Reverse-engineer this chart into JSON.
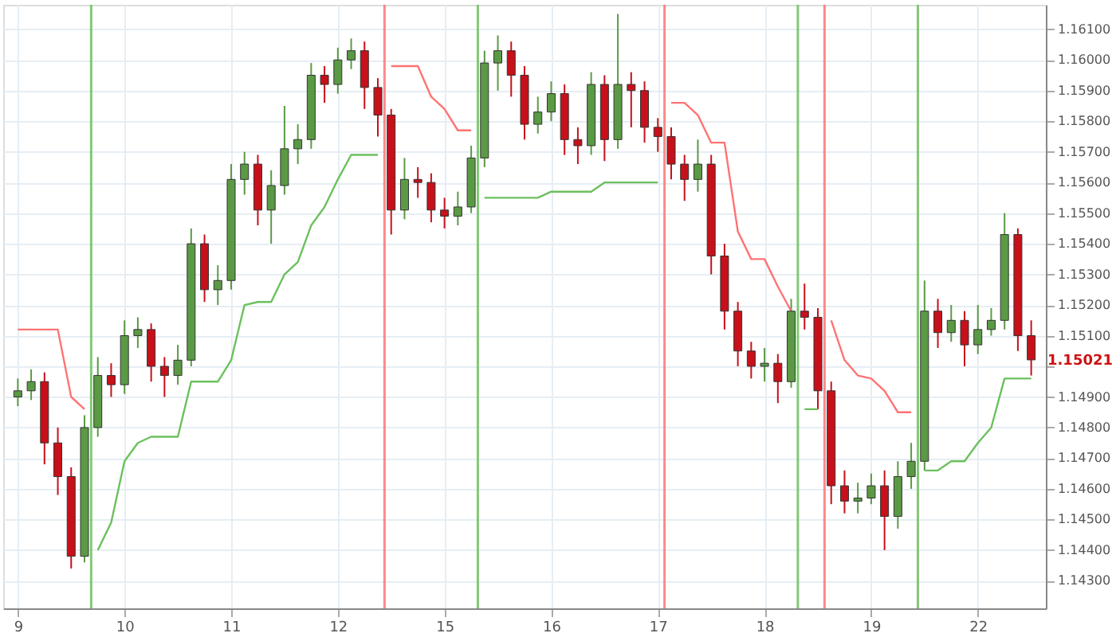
{
  "chart_data": {
    "type": "candlestick",
    "categories": [
      "9",
      null,
      null,
      null,
      null,
      null,
      null,
      null,
      "10",
      null,
      null,
      null,
      null,
      null,
      null,
      null,
      "11",
      null,
      null,
      null,
      null,
      null,
      null,
      null,
      "12",
      null,
      null,
      null,
      null,
      null,
      null,
      null,
      "15",
      null,
      null,
      null,
      null,
      null,
      null,
      null,
      "16",
      null,
      null,
      null,
      null,
      null,
      null,
      null,
      "17",
      null,
      null,
      null,
      null,
      null,
      null,
      null,
      "18",
      null,
      null,
      null,
      null,
      null,
      null,
      null,
      "19",
      null,
      null,
      null,
      null,
      null,
      null,
      null,
      "22",
      null,
      null,
      null,
      null
    ],
    "ohlc": [
      [
        1.149,
        1.1496,
        1.1487,
        1.1492
      ],
      [
        1.1492,
        1.1499,
        1.1489,
        1.1495
      ],
      [
        1.1495,
        1.1498,
        1.1468,
        1.1475
      ],
      [
        1.1475,
        1.148,
        1.1458,
        1.1464
      ],
      [
        1.1464,
        1.1467,
        1.1434,
        1.1438
      ],
      [
        1.1438,
        1.1484,
        1.1436,
        1.148
      ],
      [
        1.148,
        1.1503,
        1.1477,
        1.1497
      ],
      [
        1.1497,
        1.1501,
        1.149,
        1.1494
      ],
      [
        1.1494,
        1.1515,
        1.1491,
        1.151
      ],
      [
        1.151,
        1.1516,
        1.1506,
        1.1512
      ],
      [
        1.1512,
        1.1514,
        1.1495,
        1.15
      ],
      [
        1.15,
        1.1503,
        1.149,
        1.1497
      ],
      [
        1.1497,
        1.1507,
        1.1494,
        1.1502
      ],
      [
        1.1502,
        1.1545,
        1.15,
        1.154
      ],
      [
        1.154,
        1.1543,
        1.1521,
        1.1525
      ],
      [
        1.1525,
        1.1533,
        1.152,
        1.1528
      ],
      [
        1.1528,
        1.1566,
        1.1525,
        1.1561
      ],
      [
        1.1561,
        1.157,
        1.1556,
        1.1566
      ],
      [
        1.1566,
        1.1569,
        1.1546,
        1.1551
      ],
      [
        1.1551,
        1.1564,
        1.154,
        1.1559
      ],
      [
        1.1559,
        1.1585,
        1.1556,
        1.1571
      ],
      [
        1.1571,
        1.1579,
        1.1566,
        1.1574
      ],
      [
        1.1574,
        1.1599,
        1.1571,
        1.1595
      ],
      [
        1.1595,
        1.1598,
        1.1586,
        1.1592
      ],
      [
        1.1592,
        1.1604,
        1.1589,
        1.16
      ],
      [
        1.16,
        1.1607,
        1.1597,
        1.1603
      ],
      [
        1.1603,
        1.1606,
        1.1584,
        1.1591
      ],
      [
        1.1591,
        1.1594,
        1.1575,
        1.1582
      ],
      [
        1.1582,
        1.1584,
        1.1543,
        1.1551
      ],
      [
        1.1551,
        1.1568,
        1.1548,
        1.1561
      ],
      [
        1.1561,
        1.1565,
        1.1555,
        1.156
      ],
      [
        1.156,
        1.1563,
        1.1547,
        1.1551
      ],
      [
        1.1551,
        1.1555,
        1.1545,
        1.1549
      ],
      [
        1.1549,
        1.1557,
        1.1546,
        1.1552
      ],
      [
        1.1552,
        1.1572,
        1.155,
        1.1568
      ],
      [
        1.1568,
        1.1603,
        1.1565,
        1.1599
      ],
      [
        1.1599,
        1.1608,
        1.159,
        1.1603
      ],
      [
        1.1603,
        1.1606,
        1.1588,
        1.1595
      ],
      [
        1.1595,
        1.1598,
        1.1574,
        1.1579
      ],
      [
        1.1579,
        1.1588,
        1.1576,
        1.1583
      ],
      [
        1.1583,
        1.1593,
        1.158,
        1.1589
      ],
      [
        1.1589,
        1.1592,
        1.1569,
        1.1574
      ],
      [
        1.1574,
        1.1578,
        1.1566,
        1.1572
      ],
      [
        1.1572,
        1.1596,
        1.1569,
        1.1592
      ],
      [
        1.1592,
        1.1595,
        1.1567,
        1.1574
      ],
      [
        1.1574,
        1.1615,
        1.1571,
        1.1592
      ],
      [
        1.1592,
        1.1596,
        1.1578,
        1.159
      ],
      [
        1.159,
        1.1593,
        1.1573,
        1.1578
      ],
      [
        1.1578,
        1.1581,
        1.157,
        1.1575
      ],
      [
        1.1575,
        1.1578,
        1.1561,
        1.1566
      ],
      [
        1.1566,
        1.1569,
        1.1554,
        1.1561
      ],
      [
        1.1561,
        1.1574,
        1.1557,
        1.1566
      ],
      [
        1.1566,
        1.1569,
        1.153,
        1.1536
      ],
      [
        1.1536,
        1.154,
        1.1512,
        1.1518
      ],
      [
        1.1518,
        1.1521,
        1.15,
        1.1505
      ],
      [
        1.1505,
        1.1508,
        1.1496,
        1.15
      ],
      [
        1.15,
        1.1506,
        1.1495,
        1.1501
      ],
      [
        1.1501,
        1.1504,
        1.1488,
        1.1495
      ],
      [
        1.1495,
        1.1522,
        1.1493,
        1.1518
      ],
      [
        1.1518,
        1.1527,
        1.1512,
        1.1516
      ],
      [
        1.1516,
        1.1519,
        1.1486,
        1.1492
      ],
      [
        1.1492,
        1.1495,
        1.1455,
        1.1461
      ],
      [
        1.1461,
        1.1466,
        1.1452,
        1.1456
      ],
      [
        1.1456,
        1.1462,
        1.1452,
        1.1457
      ],
      [
        1.1457,
        1.1465,
        1.1455,
        1.1461
      ],
      [
        1.1461,
        1.1466,
        1.144,
        1.1451
      ],
      [
        1.1451,
        1.1469,
        1.1447,
        1.1464
      ],
      [
        1.1464,
        1.1475,
        1.146,
        1.1469
      ],
      [
        1.1469,
        1.1528,
        1.1466,
        1.1518
      ],
      [
        1.1518,
        1.1522,
        1.1506,
        1.1511
      ],
      [
        1.1511,
        1.152,
        1.1508,
        1.1515
      ],
      [
        1.1515,
        1.1518,
        1.15,
        1.1507
      ],
      [
        1.1507,
        1.152,
        1.1504,
        1.1512
      ],
      [
        1.1512,
        1.1519,
        1.151,
        1.1515
      ],
      [
        1.1515,
        1.155,
        1.1512,
        1.1543
      ],
      [
        1.1543,
        1.1545,
        1.1505,
        1.151
      ],
      [
        1.151,
        1.1515,
        1.1497,
        1.15021
      ]
    ],
    "colors": [
      "#5b9a45",
      "#5b9a45",
      "#c8101a",
      "#c8101a",
      "#c8101a",
      "#5b9a45",
      "#5b9a45",
      "#c8101a",
      "#5b9a45",
      "#5b9a45",
      "#c8101a",
      "#c8101a",
      "#5b9a45",
      "#5b9a45",
      "#c8101a",
      "#5b9a45",
      "#5b9a45",
      "#5b9a45",
      "#c8101a",
      "#5b9a45",
      "#5b9a45",
      "#5b9a45",
      "#5b9a45",
      "#c8101a",
      "#5b9a45",
      "#5b9a45",
      "#c8101a",
      "#c8101a",
      "#c8101a",
      "#5b9a45",
      "#c8101a",
      "#c8101a",
      "#c8101a",
      "#5b9a45",
      "#5b9a45",
      "#5b9a45",
      "#5b9a45",
      "#c8101a",
      "#c8101a",
      "#5b9a45",
      "#5b9a45",
      "#c8101a",
      "#c8101a",
      "#5b9a45",
      "#c8101a",
      "#5b9a45",
      "#c8101a",
      "#c8101a",
      "#c8101a",
      "#c8101a",
      "#c8101a",
      "#5b9a45",
      "#c8101a",
      "#c8101a",
      "#c8101a",
      "#c8101a",
      "#5b9a45",
      "#c8101a",
      "#5b9a45",
      "#c8101a",
      "#c8101a",
      "#c8101a",
      "#c8101a",
      "#5b9a45",
      "#5b9a45",
      "#c8101a",
      "#5b9a45",
      "#5b9a45",
      "#5b9a45",
      "#c8101a",
      "#5b9a45",
      "#c8101a",
      "#5b9a45",
      "#5b9a45",
      "#5b9a45",
      "#c8101a",
      "#c8101a"
    ],
    "series": [
      {
        "type": "line",
        "color": "#ff7373",
        "values": [
          1.1512,
          1.1512,
          1.1512,
          1.1512,
          1.149,
          1.1486,
          null,
          null,
          null,
          null,
          null,
          null,
          null,
          null,
          null,
          null,
          null,
          null,
          null,
          null,
          null,
          null,
          null,
          null,
          null,
          null,
          null,
          null,
          1.1598,
          1.1598,
          1.1598,
          1.1588,
          1.1584,
          1.1577,
          1.1577,
          null,
          null,
          null,
          null,
          null,
          null,
          null,
          null,
          null,
          null,
          null,
          null,
          null,
          null,
          1.1586,
          1.1586,
          1.1582,
          1.1573,
          1.1573,
          1.1544,
          1.1535,
          1.1535,
          1.1526,
          1.1518,
          null,
          null,
          1.1515,
          1.1502,
          1.1497,
          1.1496,
          1.1492,
          1.1485,
          1.1485,
          null,
          null,
          null,
          null,
          null,
          null,
          null,
          null,
          null
        ]
      },
      {
        "type": "line",
        "color": "#6cc05e",
        "values": [
          null,
          null,
          null,
          null,
          null,
          null,
          1.144,
          1.1449,
          1.1469,
          1.1475,
          1.1477,
          1.1477,
          1.1477,
          1.1495,
          1.1495,
          1.1495,
          1.1502,
          1.152,
          1.1521,
          1.1521,
          1.153,
          1.1534,
          1.1546,
          1.1552,
          1.1561,
          1.1569,
          1.1569,
          1.1569,
          null,
          null,
          null,
          null,
          null,
          null,
          null,
          1.1555,
          1.1555,
          1.1555,
          1.1555,
          1.1555,
          1.1557,
          1.1557,
          1.1557,
          1.1557,
          1.156,
          1.156,
          1.156,
          1.156,
          1.156,
          null,
          null,
          null,
          null,
          null,
          null,
          null,
          null,
          null,
          null,
          1.1486,
          1.1486,
          null,
          null,
          null,
          null,
          null,
          null,
          null,
          1.1466,
          1.1466,
          1.1469,
          1.1469,
          1.1475,
          1.148,
          1.1496,
          1.1496,
          1.1496
        ]
      }
    ],
    "annotations": [
      "1.15021"
    ],
    "ylim": [
      1.1421,
      1.1618
    ],
    "yticks": [
      {
        "value": 1.143,
        "label": "1.14300"
      },
      {
        "value": 1.144,
        "label": "1.14400"
      },
      {
        "value": 1.145,
        "label": "1.14500"
      },
      {
        "value": 1.146,
        "label": "1.14600"
      },
      {
        "value": 1.147,
        "label": "1.14700"
      },
      {
        "value": 1.148,
        "label": "1.14800"
      },
      {
        "value": 1.149,
        "label": "1.14900"
      },
      {
        "value": 1.15,
        "label": null
      },
      {
        "value": 1.151,
        "label": "1.15100"
      },
      {
        "value": 1.152,
        "label": "1.15200"
      },
      {
        "value": 1.153,
        "label": "1.15300"
      },
      {
        "value": 1.154,
        "label": "1.15400"
      },
      {
        "value": 1.155,
        "label": "1.15500"
      },
      {
        "value": 1.156,
        "label": "1.15600"
      },
      {
        "value": 1.157,
        "label": "1.15700"
      },
      {
        "value": 1.158,
        "label": "1.15800"
      },
      {
        "value": 1.159,
        "label": "1.15900"
      },
      {
        "value": 1.16,
        "label": "1.16000"
      },
      {
        "value": 1.161,
        "label": "1.16100"
      }
    ],
    "grid": true
  }
}
